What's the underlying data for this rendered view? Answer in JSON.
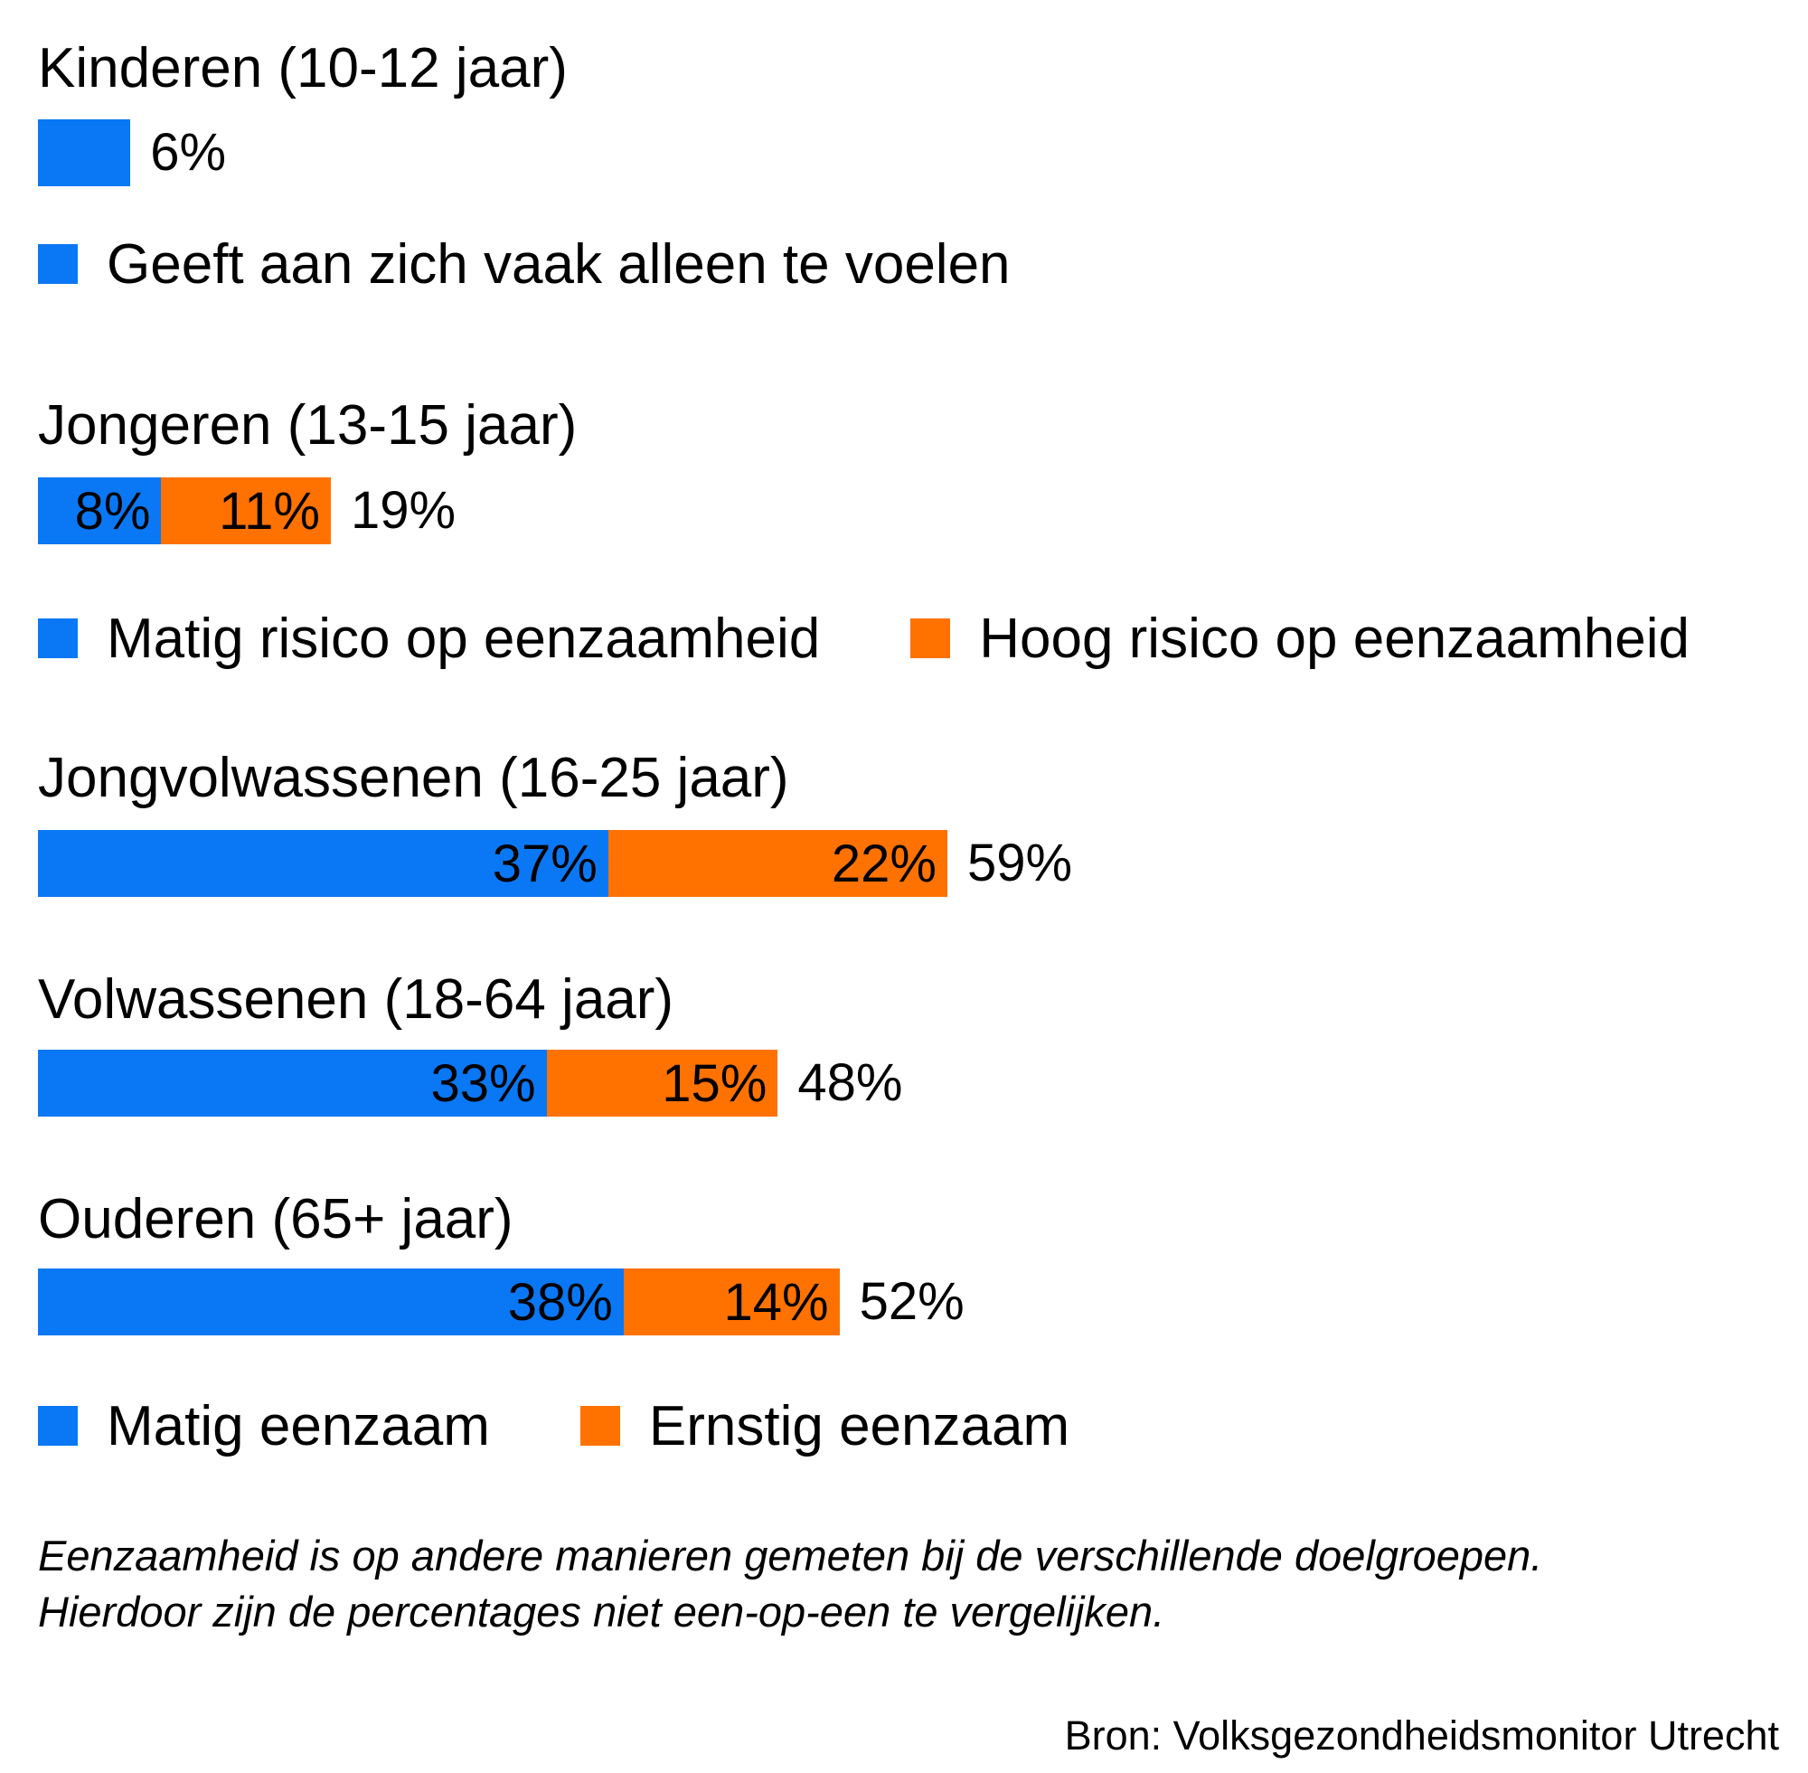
{
  "colors": {
    "blue": "#0a78f5",
    "orange": "#ff7200"
  },
  "chart_data": {
    "type": "bar",
    "orientation": "horizontal",
    "stacked": true,
    "groups": [
      {
        "title": "Kinderen (10-12 jaar)",
        "segments": [
          {
            "series": "Geeft aan zich vaak alleen te voelen",
            "value": 6,
            "label": "",
            "color": "blue"
          }
        ],
        "total_label": "6%",
        "legend": [
          {
            "label": "Geeft aan zich vaak alleen te voelen",
            "color": "blue"
          }
        ]
      },
      {
        "title": "Jongeren (13-15 jaar)",
        "segments": [
          {
            "series": "Matig risico op eenzaamheid",
            "value": 8,
            "label": "8%",
            "color": "blue"
          },
          {
            "series": "Hoog risico op eenzaamheid",
            "value": 11,
            "label": "11%",
            "color": "orange"
          }
        ],
        "total_label": "19%",
        "legend": [
          {
            "label": "Matig risico op eenzaamheid",
            "color": "blue"
          },
          {
            "label": "Hoog risico op eenzaamheid",
            "color": "orange"
          }
        ]
      },
      {
        "title": "Jongvolwassenen (16-25 jaar)",
        "segments": [
          {
            "series": "Matig eenzaam",
            "value": 37,
            "label": "37%",
            "color": "blue"
          },
          {
            "series": "Ernstig eenzaam",
            "value": 22,
            "label": "22%",
            "color": "orange"
          }
        ],
        "total_label": "59%"
      },
      {
        "title": "Volwassenen (18-64 jaar)",
        "segments": [
          {
            "series": "Matig eenzaam",
            "value": 33,
            "label": "33%",
            "color": "blue"
          },
          {
            "series": "Ernstig eenzaam",
            "value": 15,
            "label": "15%",
            "color": "orange"
          }
        ],
        "total_label": "48%"
      },
      {
        "title": "Ouderen (65+ jaar)",
        "segments": [
          {
            "series": "Matig eenzaam",
            "value": 38,
            "label": "38%",
            "color": "blue"
          },
          {
            "series": "Ernstig eenzaam",
            "value": 14,
            "label": "14%",
            "color": "orange"
          }
        ],
        "total_label": "52%",
        "legend": [
          {
            "label": "Matig eenzaam",
            "color": "blue"
          },
          {
            "label": "Ernstig eenzaam",
            "color": "orange"
          }
        ]
      }
    ],
    "note_lines": [
      "Eenzaamheid is op andere manieren gemeten bij de verschillende doelgroepen.",
      "Hierdoor zijn de percentages niet een-op-een te vergelijken."
    ],
    "source": "Bron: Volksgezondheidsmonitor Utrecht"
  }
}
